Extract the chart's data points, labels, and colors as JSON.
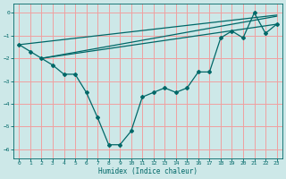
{
  "title": "",
  "xlabel": "Humidex (Indice chaleur)",
  "ylabel": "",
  "background_color": "#cde8e8",
  "grid_color": "#f0a0a0",
  "line_color": "#006868",
  "xlim": [
    -0.5,
    23.5
  ],
  "ylim": [
    -6.4,
    0.4
  ],
  "yticks": [
    0,
    -1,
    -2,
    -3,
    -4,
    -5,
    -6
  ],
  "xticks": [
    0,
    1,
    2,
    3,
    4,
    5,
    6,
    7,
    8,
    9,
    10,
    11,
    12,
    13,
    14,
    15,
    16,
    17,
    18,
    19,
    20,
    21,
    22,
    23
  ],
  "main_line_x": [
    0,
    1,
    2,
    3,
    4,
    5,
    6,
    7,
    8,
    9,
    10,
    11,
    12,
    13,
    14,
    15,
    16,
    17,
    18,
    19,
    20,
    21,
    22,
    23
  ],
  "main_line_y": [
    -1.4,
    -1.7,
    -2.0,
    -2.3,
    -2.7,
    -2.7,
    -3.5,
    -4.6,
    -5.8,
    -5.8,
    -5.2,
    -3.7,
    -3.5,
    -3.3,
    -3.5,
    -3.3,
    -2.6,
    -2.6,
    -1.1,
    -0.8,
    -1.1,
    0.0,
    -0.9,
    -0.5
  ],
  "line2_x": [
    0,
    23
  ],
  "line2_y": [
    -1.4,
    -0.1
  ],
  "line3_x": [
    2,
    23
  ],
  "line3_y": [
    -2.0,
    -0.15
  ],
  "line4_x": [
    2,
    23
  ],
  "line4_y": [
    -2.0,
    -0.5
  ]
}
